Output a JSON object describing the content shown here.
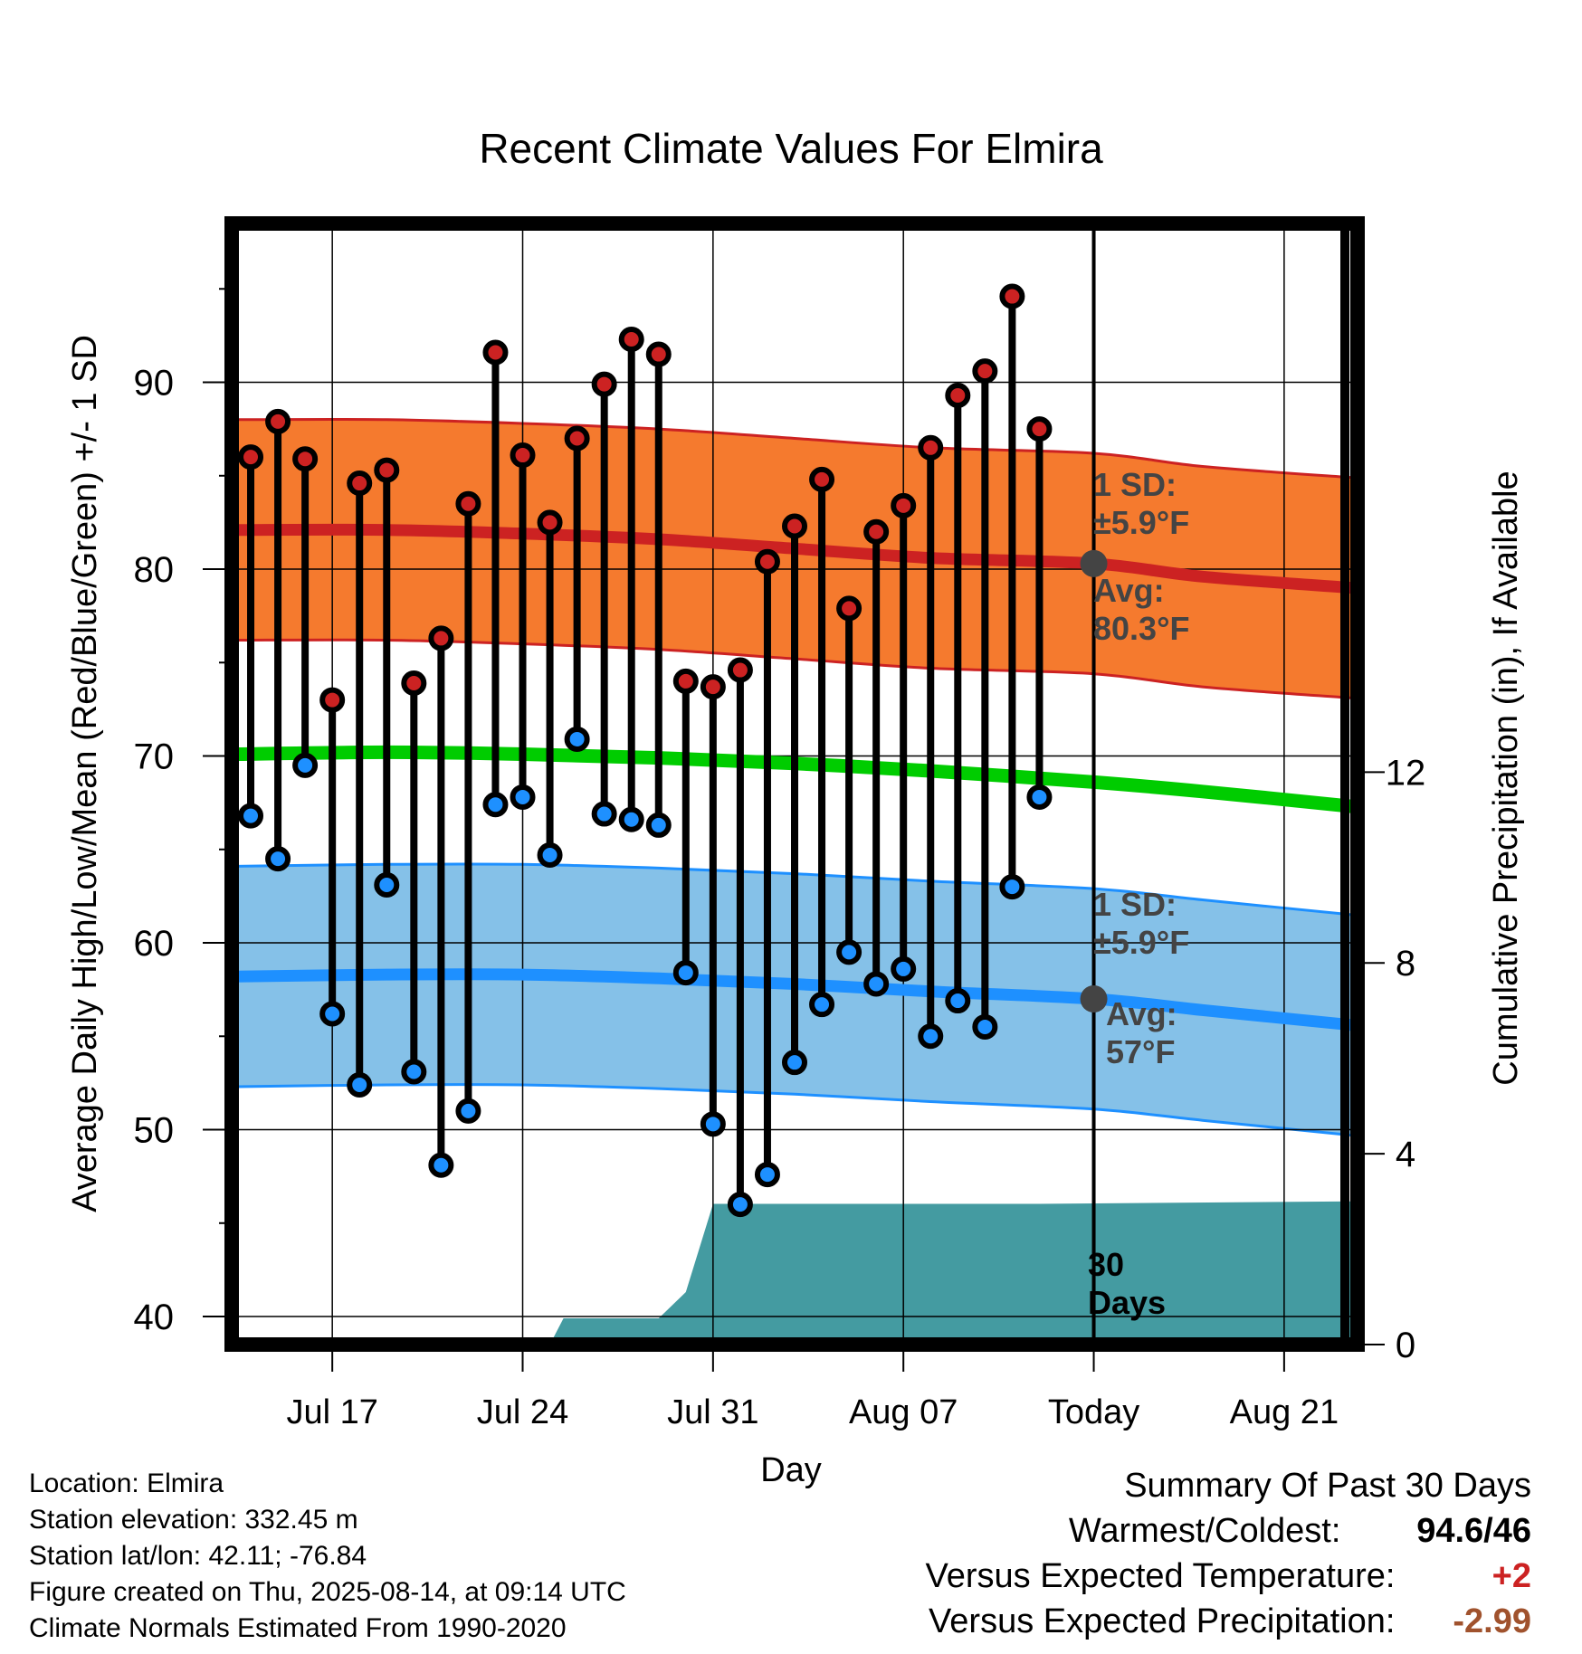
{
  "chart_data": {
    "type": "line",
    "title": "Recent Climate Values For Elmira",
    "xlabel": "Day",
    "ylabel": "Average Daily High/Low/Mean (Red/Blue/Green) +/- 1 SD",
    "y2label": "Cumulative Precipitation (in), If Available",
    "x_ticks": [
      "Jul 17",
      "Jul 24",
      "Jul 31",
      "Aug 07",
      "Today",
      "Aug 21"
    ],
    "x_tick_days": [
      3,
      10,
      17,
      24,
      31,
      38
    ],
    "xlim": [
      -0.5,
      40.5
    ],
    "ylim": [
      38.5,
      98.5
    ],
    "yticks": [
      40,
      50,
      60,
      70,
      80,
      90
    ],
    "y2lim": [
      0,
      23.5
    ],
    "y2ticks": [
      0,
      4,
      8,
      12
    ],
    "grid": true,
    "colors": {
      "high": "#cc2222",
      "high_band": "#f57a2e",
      "low": "#1e90ff",
      "low_band": "#85c1e8",
      "mean": "#00cc00",
      "precip": "#449ba1",
      "today_marker": "#444444",
      "annotation": "#444444"
    },
    "days": [
      0,
      1,
      2,
      3,
      4,
      5,
      6,
      7,
      8,
      9,
      10,
      11,
      12,
      13,
      14,
      15,
      16,
      17,
      18,
      19,
      20,
      21,
      22,
      23,
      24,
      25,
      26,
      27,
      28,
      29
    ],
    "observed_high": [
      86.0,
      87.9,
      85.9,
      73.0,
      84.6,
      85.3,
      73.9,
      76.3,
      83.5,
      91.6,
      86.1,
      82.5,
      87.0,
      89.9,
      92.3,
      91.5,
      74.0,
      73.7,
      74.6,
      80.4,
      82.3,
      84.8,
      77.9,
      82.0,
      83.4,
      86.5,
      89.3,
      90.6,
      94.6,
      87.5
    ],
    "observed_low": [
      66.8,
      64.5,
      69.5,
      56.2,
      52.4,
      63.1,
      53.1,
      48.1,
      51.0,
      67.4,
      67.8,
      64.7,
      70.9,
      66.9,
      66.6,
      66.3,
      58.4,
      50.3,
      46.0,
      47.6,
      53.6,
      56.7,
      59.5,
      57.8,
      58.6,
      55.0,
      56.9,
      55.5,
      63.0,
      67.8
    ],
    "normal_high": [
      [
        -0.5,
        82.1
      ],
      [
        5,
        82.1
      ],
      [
        10,
        81.9
      ],
      [
        15,
        81.6
      ],
      [
        20,
        81.1
      ],
      [
        25,
        80.6
      ],
      [
        31,
        80.3
      ],
      [
        35,
        79.6
      ],
      [
        40.5,
        79.0
      ]
    ],
    "normal_low": [
      [
        -0.5,
        58.2
      ],
      [
        5,
        58.3
      ],
      [
        10,
        58.3
      ],
      [
        15,
        58.1
      ],
      [
        20,
        57.8
      ],
      [
        25,
        57.4
      ],
      [
        31,
        57.0
      ],
      [
        35,
        56.4
      ],
      [
        40.5,
        55.6
      ]
    ],
    "normal_mean": [
      [
        -0.5,
        70.1
      ],
      [
        5,
        70.2
      ],
      [
        10,
        70.1
      ],
      [
        15,
        69.9
      ],
      [
        20,
        69.6
      ],
      [
        25,
        69.2
      ],
      [
        31,
        68.6
      ],
      [
        35,
        68.1
      ],
      [
        40.5,
        67.3
      ]
    ],
    "sd_high": 5.9,
    "sd_low": 5.9,
    "cumulative_precip": [
      [
        11,
        0.0
      ],
      [
        11.5,
        0.55
      ],
      [
        15,
        0.55
      ],
      [
        16,
        1.1
      ],
      [
        17,
        2.95
      ],
      [
        29,
        2.95
      ],
      [
        40.5,
        3.0
      ]
    ],
    "today_day": 31,
    "annotations": {
      "high_sd": [
        "1 SD:",
        "±5.9°F"
      ],
      "high_avg": [
        "Avg:",
        "80.3°F"
      ],
      "low_sd": [
        "1 SD:",
        "±5.9°F"
      ],
      "low_avg": [
        "Avg:",
        "57°F"
      ],
      "period": [
        "30",
        "Days"
      ]
    }
  },
  "footer": {
    "location": "Location: Elmira",
    "elevation": "Station elevation: 332.45 m",
    "latlon": "Station lat/lon: 42.11; -76.84",
    "created": "Figure created on Thu, 2025-08-14, at 09:14 UTC",
    "normals": "Climate Normals Estimated From 1990-2020"
  },
  "summary": {
    "title": "Summary Of Past 30 Days",
    "warm_cold_label": "Warmest/Coldest:",
    "warm_cold_value": "94.6/46",
    "temp_label": "Versus Expected Temperature:",
    "temp_value": "+2",
    "temp_color": "#cc2222",
    "precip_label": "Versus Expected Precipitation:",
    "precip_value": "-2.99",
    "precip_color": "#a0522d"
  }
}
